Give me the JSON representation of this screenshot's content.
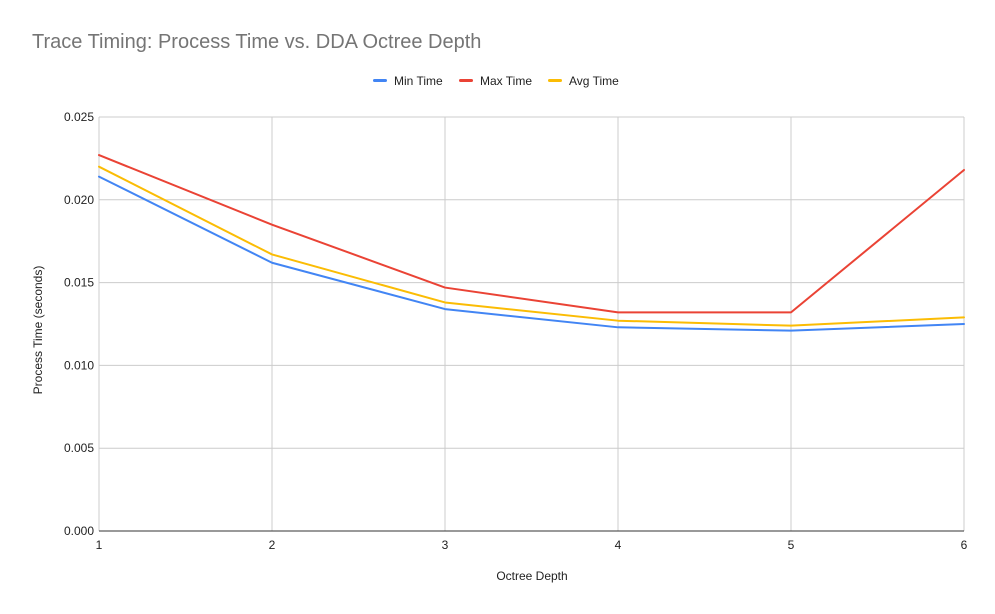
{
  "chart_data": {
    "type": "line",
    "title": "Trace Timing: Process Time vs. DDA Octree Depth",
    "xlabel": "Octree Depth",
    "ylabel": "Process Time (seconds)",
    "x": [
      1,
      2,
      3,
      4,
      5,
      6
    ],
    "x_tick_labels": [
      "1",
      "2",
      "3",
      "4",
      "5",
      "6"
    ],
    "y_tick_labels": [
      "0.000",
      "0.005",
      "0.010",
      "0.015",
      "0.020",
      "0.025"
    ],
    "y_ticks": [
      0,
      0.005,
      0.01,
      0.015,
      0.02,
      0.025
    ],
    "xlim": [
      1,
      6
    ],
    "ylim": [
      0,
      0.025
    ],
    "grid": true,
    "legend_position": "top-center",
    "series": [
      {
        "name": "Min Time",
        "color": "#4285f4",
        "values": [
          0.0214,
          0.0162,
          0.0134,
          0.0123,
          0.0121,
          0.0125
        ]
      },
      {
        "name": "Max Time",
        "color": "#ea4335",
        "values": [
          0.0227,
          0.0185,
          0.0147,
          0.0132,
          0.0132,
          0.0218
        ]
      },
      {
        "name": "Avg Time",
        "color": "#fbbc04",
        "values": [
          0.022,
          0.0167,
          0.0138,
          0.0127,
          0.0124,
          0.0129
        ]
      }
    ]
  }
}
